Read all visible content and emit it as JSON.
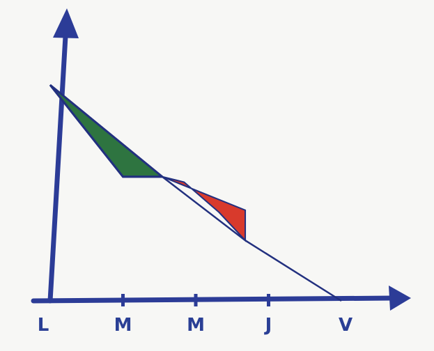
{
  "chart_data": {
    "type": "area",
    "categories": [
      "L",
      "M",
      "M",
      "J",
      "V"
    ],
    "x": [
      0,
      1,
      2,
      3,
      4
    ],
    "lines": [
      {
        "values": [
          1.0,
          0.575,
          0.575
        ],
        "color": "#2f3e98"
      },
      {
        "values": [
          1.0,
          0.72,
          0.4,
          0.0
        ],
        "color": "#22307f"
      }
    ],
    "shaded_regions": [
      {
        "color": "#2e7440",
        "between": "above-below",
        "x_range": [
          0,
          1.54
        ]
      },
      {
        "color": "#d83a2c",
        "between": "above-below",
        "x_range": [
          1.54,
          2.68
        ]
      }
    ],
    "ylim": [
      0,
      1.05
    ],
    "xlim": [
      0,
      4.3
    ],
    "grid": false,
    "legend": "none",
    "colors": {
      "axis": "#2c3c97",
      "green": "#2e7440",
      "red": "#d83a2c",
      "line": "#22307f"
    }
  }
}
